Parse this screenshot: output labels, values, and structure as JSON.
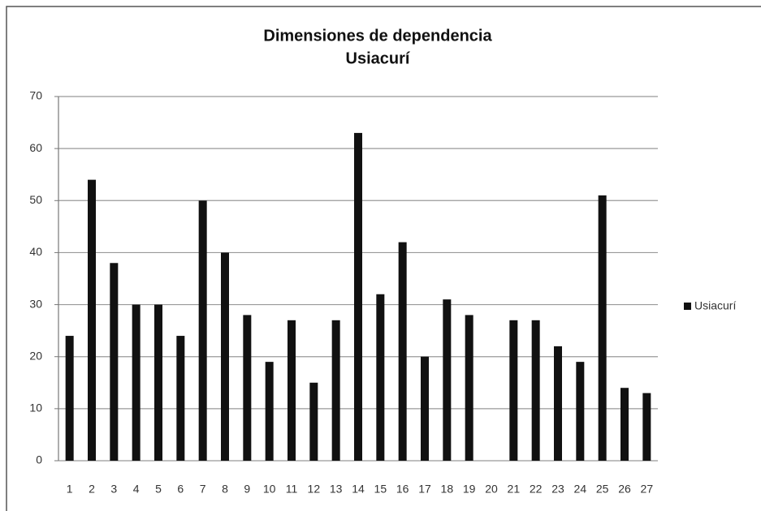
{
  "chart_data": {
    "type": "bar",
    "title": "Dimensiones de dependencia",
    "subtitle": "Usiacurí",
    "categories": [
      "1",
      "2",
      "3",
      "4",
      "5",
      "6",
      "7",
      "8",
      "9",
      "10",
      "11",
      "12",
      "13",
      "14",
      "15",
      "16",
      "17",
      "18",
      "19",
      "20",
      "21",
      "22",
      "23",
      "24",
      "25",
      "26",
      "27"
    ],
    "series": [
      {
        "name": "Usiacurí",
        "color": "#111111",
        "values": [
          24,
          54,
          38,
          30,
          30,
          24,
          50,
          40,
          28,
          19,
          27,
          15,
          27,
          63,
          32,
          42,
          20,
          31,
          28,
          0,
          27,
          27,
          22,
          19,
          51,
          14,
          13
        ]
      }
    ],
    "ylim": [
      0,
      70
    ],
    "yticks": [
      0,
      10,
      20,
      30,
      40,
      50,
      60,
      70
    ],
    "grid": true,
    "legend": "right"
  }
}
